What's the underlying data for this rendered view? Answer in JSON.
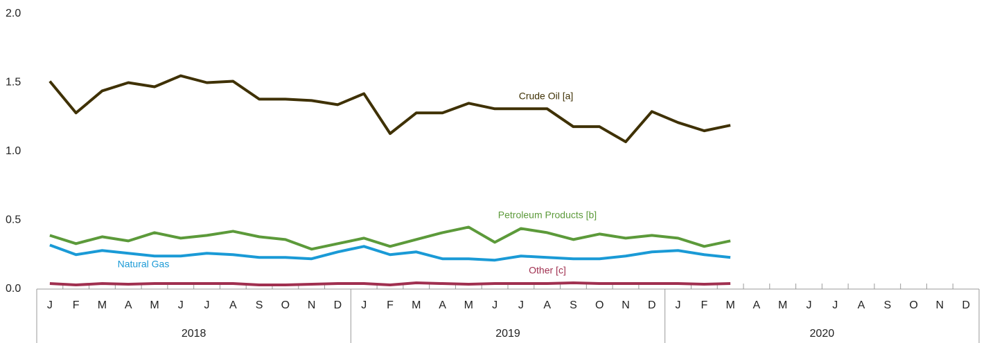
{
  "chart_data": {
    "type": "line",
    "categories": [
      "J",
      "F",
      "M",
      "A",
      "M",
      "J",
      "J",
      "A",
      "S",
      "O",
      "N",
      "D",
      "J",
      "F",
      "M",
      "A",
      "M",
      "J",
      "J",
      "A",
      "S",
      "O",
      "N",
      "D",
      "J",
      "F",
      "M",
      "A",
      "M",
      "J",
      "J",
      "A",
      "S",
      "O",
      "N",
      "D"
    ],
    "years": [
      "2018",
      "2019",
      "2020"
    ],
    "ylim": [
      0,
      2
    ],
    "yticks": [
      {
        "value": 0,
        "label": "0.0"
      },
      0.5,
      {
        "value": 1,
        "label": "1.0"
      },
      1.5,
      {
        "value": 2,
        "label": "2.0"
      }
    ],
    "grid": false,
    "series": [
      {
        "name": "Crude Oil [a]",
        "color": "#3f3104",
        "values": [
          1.51,
          1.28,
          1.44,
          1.5,
          1.47,
          1.55,
          1.5,
          1.51,
          1.38,
          1.38,
          1.37,
          1.34,
          1.42,
          1.13,
          1.28,
          1.28,
          1.35,
          1.31,
          1.31,
          1.31,
          1.18,
          1.18,
          1.07,
          1.29,
          1.21,
          1.15,
          1.19,
          null,
          null,
          null,
          null,
          null,
          null,
          null,
          null,
          null
        ]
      },
      {
        "name": "Petroleum Products [b]",
        "color": "#5c9a3a",
        "values": [
          0.39,
          0.33,
          0.38,
          0.35,
          0.41,
          0.37,
          0.39,
          0.42,
          0.38,
          0.36,
          0.29,
          0.33,
          0.37,
          0.31,
          0.36,
          0.41,
          0.45,
          0.34,
          0.44,
          0.41,
          0.36,
          0.4,
          0.37,
          0.39,
          0.37,
          0.31,
          0.35,
          null,
          null,
          null,
          null,
          null,
          null,
          null,
          null,
          null
        ]
      },
      {
        "name": "Natural Gas",
        "color": "#1a9ad6",
        "values": [
          0.32,
          0.25,
          0.28,
          0.26,
          0.24,
          0.24,
          0.26,
          0.25,
          0.23,
          0.23,
          0.22,
          0.27,
          0.31,
          0.25,
          0.27,
          0.22,
          0.22,
          0.21,
          0.24,
          0.23,
          0.22,
          0.22,
          0.24,
          0.27,
          0.28,
          0.25,
          0.23,
          null,
          null,
          null,
          null,
          null,
          null,
          null,
          null,
          null
        ]
      },
      {
        "name": "Other [c]",
        "color": "#a03050",
        "values": [
          0.04,
          0.03,
          0.04,
          0.035,
          0.04,
          0.04,
          0.04,
          0.04,
          0.03,
          0.03,
          0.035,
          0.04,
          0.04,
          0.03,
          0.045,
          0.04,
          0.035,
          0.04,
          0.04,
          0.04,
          0.045,
          0.04,
          0.04,
          0.04,
          0.04,
          0.035,
          0.04,
          null,
          null,
          null,
          null,
          null,
          null,
          null,
          null,
          null
        ]
      }
    ]
  }
}
